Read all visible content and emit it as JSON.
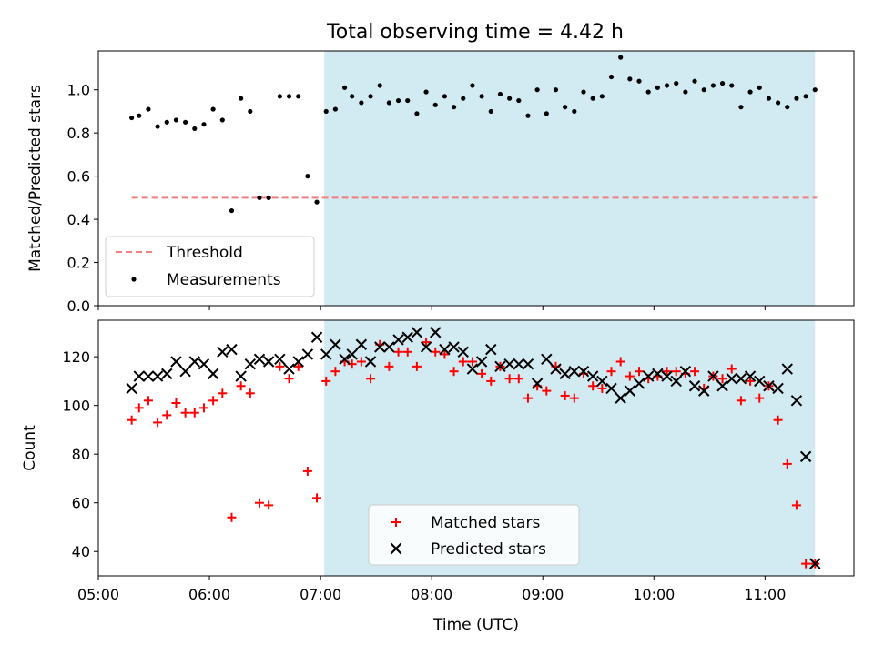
{
  "title": "Total observing time = 4.42 h",
  "colors": {
    "night_band": "#add8e6",
    "threshold": "#f08080",
    "measurements": "#000000",
    "matched": "#ff0000",
    "predicted": "#000000"
  },
  "chart_data": [
    {
      "type": "scatter",
      "panel": "top",
      "title": "Total observing time = 4.42 h",
      "xlabel": "",
      "ylabel": "Matched/Predicted stars",
      "xlim": [
        "05:00",
        "11:48"
      ],
      "ylim": [
        0,
        1.18
      ],
      "yticks": [
        "0.0",
        "0.2",
        "0.4",
        "0.6",
        "0.8",
        "1.0"
      ],
      "shaded_interval": [
        "07:02",
        "11:27"
      ],
      "legend": {
        "placement": "lower-left",
        "entries": [
          "Threshold",
          "Measurements"
        ]
      },
      "series": [
        {
          "name": "Threshold",
          "kind": "dashed-line",
          "x": [
            "05:18",
            "11:28"
          ],
          "y": [
            0.5,
            0.5
          ]
        },
        {
          "name": "Measurements",
          "kind": "dot",
          "x": [
            "05:18",
            "05:22",
            "05:27",
            "05:32",
            "05:37",
            "05:42",
            "05:47",
            "05:52",
            "05:57",
            "06:02",
            "06:07",
            "06:12",
            "06:17",
            "06:22",
            "06:27",
            "06:32",
            "06:38",
            "06:43",
            "06:48",
            "06:53",
            "06:58",
            "07:03",
            "07:08",
            "07:13",
            "07:17",
            "07:22",
            "07:27",
            "07:32",
            "07:37",
            "07:42",
            "07:47",
            "07:52",
            "07:57",
            "08:02",
            "08:07",
            "08:12",
            "08:17",
            "08:22",
            "08:27",
            "08:32",
            "08:37",
            "08:42",
            "08:47",
            "08:52",
            "08:57",
            "09:02",
            "09:07",
            "09:12",
            "09:17",
            "09:22",
            "09:27",
            "09:32",
            "09:37",
            "09:42",
            "09:47",
            "09:52",
            "09:57",
            "10:02",
            "10:07",
            "10:12",
            "10:17",
            "10:22",
            "10:27",
            "10:32",
            "10:37",
            "10:42",
            "10:47",
            "10:52",
            "10:57",
            "11:02",
            "11:07",
            "11:12",
            "11:17",
            "11:22",
            "11:27"
          ],
          "y": [
            0.87,
            0.88,
            0.91,
            0.83,
            0.85,
            0.86,
            0.85,
            0.82,
            0.84,
            0.91,
            0.86,
            0.44,
            0.96,
            0.9,
            0.5,
            0.5,
            0.97,
            0.97,
            0.97,
            0.6,
            0.48,
            0.9,
            0.91,
            1.01,
            0.97,
            0.94,
            0.97,
            1.02,
            0.94,
            0.95,
            0.95,
            0.89,
            0.99,
            0.93,
            0.97,
            0.92,
            0.96,
            1.02,
            0.97,
            0.9,
            0.98,
            0.96,
            0.95,
            0.88,
            1.0,
            0.89,
            1.0,
            0.92,
            0.9,
            0.99,
            0.96,
            0.97,
            1.06,
            1.15,
            1.05,
            1.04,
            0.99,
            1.01,
            1.02,
            1.03,
            0.99,
            1.04,
            1.0,
            1.02,
            1.03,
            1.02,
            0.92,
            0.99,
            1.01,
            0.96,
            0.94,
            0.92,
            0.96,
            0.97,
            1.0
          ]
        }
      ]
    },
    {
      "type": "scatter",
      "panel": "bottom",
      "xlabel": "Time (UTC)",
      "ylabel": "Count",
      "xlim": [
        "05:00",
        "11:48"
      ],
      "ylim": [
        30,
        135
      ],
      "xticks": [
        "05:00",
        "06:00",
        "07:00",
        "08:00",
        "09:00",
        "10:00",
        "11:00"
      ],
      "yticks": [
        "40",
        "60",
        "80",
        "100",
        "120"
      ],
      "shaded_interval": [
        "07:02",
        "11:27"
      ],
      "legend": {
        "placement": "lower-center",
        "entries": [
          "Matched stars",
          "Predicted stars"
        ]
      },
      "series": [
        {
          "name": "Matched stars",
          "marker": "plus",
          "x": [
            "05:18",
            "05:22",
            "05:27",
            "05:32",
            "05:37",
            "05:42",
            "05:47",
            "05:52",
            "05:57",
            "06:02",
            "06:07",
            "06:12",
            "06:17",
            "06:22",
            "06:27",
            "06:32",
            "06:38",
            "06:43",
            "06:48",
            "06:53",
            "06:58",
            "07:03",
            "07:08",
            "07:13",
            "07:17",
            "07:22",
            "07:27",
            "07:32",
            "07:37",
            "07:42",
            "07:47",
            "07:52",
            "07:57",
            "08:02",
            "08:07",
            "08:12",
            "08:17",
            "08:22",
            "08:27",
            "08:32",
            "08:37",
            "08:42",
            "08:47",
            "08:52",
            "08:57",
            "09:02",
            "09:07",
            "09:12",
            "09:17",
            "09:22",
            "09:27",
            "09:32",
            "09:37",
            "09:42",
            "09:47",
            "09:52",
            "09:57",
            "10:02",
            "10:07",
            "10:12",
            "10:17",
            "10:22",
            "10:27",
            "10:32",
            "10:37",
            "10:42",
            "10:47",
            "10:52",
            "10:57",
            "11:02",
            "11:07",
            "11:12",
            "11:17",
            "11:22",
            "11:27"
          ],
          "y": [
            94,
            99,
            102,
            93,
            96,
            101,
            97,
            97,
            99,
            102,
            105,
            54,
            108,
            105,
            60,
            59,
            116,
            111,
            116,
            73,
            62,
            110,
            114,
            118,
            117,
            118,
            111,
            125,
            116,
            122,
            122,
            116,
            126,
            122,
            121,
            114,
            118,
            118,
            113,
            110,
            116,
            111,
            111,
            103,
            108,
            106,
            116,
            104,
            103,
            113,
            108,
            107,
            114,
            118,
            112,
            114,
            111,
            112,
            114,
            114,
            113,
            114,
            107,
            112,
            111,
            115,
            102,
            110,
            103,
            108,
            94,
            76,
            59,
            35,
            35
          ]
        },
        {
          "name": "Predicted stars",
          "marker": "x",
          "x": [
            "05:18",
            "05:22",
            "05:27",
            "05:32",
            "05:37",
            "05:42",
            "05:47",
            "05:52",
            "05:57",
            "06:02",
            "06:07",
            "06:12",
            "06:17",
            "06:22",
            "06:27",
            "06:32",
            "06:38",
            "06:43",
            "06:48",
            "06:53",
            "06:58",
            "07:03",
            "07:08",
            "07:13",
            "07:17",
            "07:22",
            "07:27",
            "07:32",
            "07:37",
            "07:42",
            "07:47",
            "07:52",
            "07:57",
            "08:02",
            "08:07",
            "08:12",
            "08:17",
            "08:22",
            "08:27",
            "08:32",
            "08:37",
            "08:42",
            "08:47",
            "08:52",
            "08:57",
            "09:02",
            "09:07",
            "09:12",
            "09:17",
            "09:22",
            "09:27",
            "09:32",
            "09:37",
            "09:42",
            "09:47",
            "09:52",
            "09:57",
            "10:02",
            "10:07",
            "10:12",
            "10:17",
            "10:22",
            "10:27",
            "10:32",
            "10:37",
            "10:42",
            "10:47",
            "10:52",
            "10:57",
            "11:02",
            "11:07",
            "11:12",
            "11:17",
            "11:22",
            "11:27"
          ],
          "y": [
            107,
            112,
            112,
            112,
            113,
            118,
            114,
            118,
            117,
            113,
            122,
            123,
            112,
            117,
            119,
            118,
            119,
            115,
            118,
            121,
            128,
            121,
            125,
            119,
            121,
            125,
            118,
            124,
            124,
            127,
            128,
            130,
            124,
            130,
            123,
            124,
            122,
            115,
            118,
            123,
            116,
            117,
            117,
            117,
            109,
            119,
            115,
            113,
            114,
            114,
            112,
            110,
            107,
            103,
            106,
            109,
            112,
            113,
            112,
            110,
            114,
            108,
            106,
            112,
            108,
            111,
            111,
            112,
            110,
            108,
            107,
            115,
            102,
            79,
            35
          ]
        }
      ]
    }
  ]
}
